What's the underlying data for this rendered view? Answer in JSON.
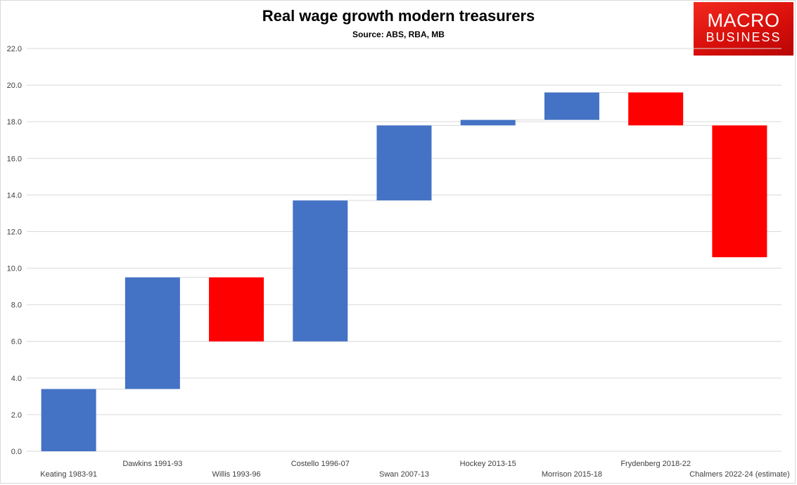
{
  "chart_data": {
    "type": "waterfall",
    "title": "Real wage growth modern treasurers",
    "subtitle": "Source: ABS, RBA, MB",
    "xlabel": "",
    "ylabel": "",
    "ylim": [
      0,
      22
    ],
    "ytick_step": 2,
    "ytick_labels": [
      "0.0",
      "2.0",
      "4.0",
      "6.0",
      "8.0",
      "10.0",
      "12.0",
      "14.0",
      "16.0",
      "18.0",
      "20.0",
      "22.0"
    ],
    "grid": true,
    "legend": "none",
    "categories": [
      "Keating 1983-91",
      "Dawkins 1991-93",
      "Willis 1993-96",
      "Costello 1996-07",
      "Swan 2007-13",
      "Hockey 2013-15",
      "Morrison 2015-18",
      "Frydenberg 2018-22",
      "Chalmers 2022-24 (estimate)"
    ],
    "values": [
      3.4,
      6.1,
      -3.5,
      7.7,
      4.1,
      0.3,
      1.5,
      -1.8,
      -7.2
    ],
    "colors": {
      "increase": "#4472c4",
      "decrease": "#ff0000",
      "connector": "#d9d9d9",
      "gridline": "#d9d9d9"
    }
  },
  "logo": {
    "line1": "MACRO",
    "line2": "BUSINESS"
  }
}
